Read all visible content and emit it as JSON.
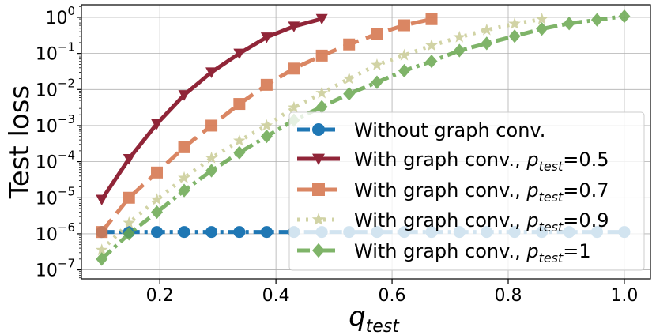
{
  "chart_data": {
    "type": "line",
    "xlabel": "q",
    "xlabel_sub": "test",
    "ylabel": "Test loss",
    "yscale": "log",
    "xlim": [
      0.065,
      1.045
    ],
    "ylim_exp": [
      -7.25,
      0.35
    ],
    "grid": true,
    "legend_position": "lower-right",
    "xticks": [
      {
        "value": 0.2,
        "label": "0.2"
      },
      {
        "value": 0.4,
        "label": "0.4"
      },
      {
        "value": 0.6,
        "label": "0.6"
      },
      {
        "value": 0.8,
        "label": "0.8"
      },
      {
        "value": 1.0,
        "label": "1.0"
      }
    ],
    "yticks": [
      {
        "exp": 0,
        "base": "10",
        "sup": "0"
      },
      {
        "exp": -1,
        "base": "10",
        "sup": "−1"
      },
      {
        "exp": -2,
        "base": "10",
        "sup": "−2"
      },
      {
        "exp": -3,
        "base": "10",
        "sup": "−3"
      },
      {
        "exp": -4,
        "base": "10",
        "sup": "−4"
      },
      {
        "exp": -5,
        "base": "10",
        "sup": "−5"
      },
      {
        "exp": -6,
        "base": "10",
        "sup": "−6"
      },
      {
        "exp": -7,
        "base": "10",
        "sup": "−7"
      }
    ],
    "series": [
      {
        "name": "Without graph conv.",
        "legend_main": "Without graph conv.",
        "legend_sub": "",
        "legend_suffix": "",
        "color": "#1f77b4",
        "marker": "circle",
        "dash": "16 6 4 6",
        "alpha": 1.0,
        "x": [
          0.1,
          0.147,
          0.195,
          0.242,
          0.289,
          0.337,
          0.384,
          0.431,
          0.479,
          0.526,
          0.574,
          0.621,
          0.668,
          0.716,
          0.763,
          0.811,
          0.858,
          0.905,
          0.953,
          1.0
        ],
        "log10_y": [
          -5.95,
          -5.95,
          -5.95,
          -5.95,
          -5.95,
          -5.95,
          -5.95,
          -5.95,
          -5.95,
          -5.95,
          -5.95,
          -5.95,
          -5.95,
          -5.95,
          -5.95,
          -5.95,
          -5.95,
          -5.95,
          -5.95,
          -5.95
        ]
      },
      {
        "name": "With graph conv., p_test=0.5",
        "legend_main": "With graph conv., ",
        "legend_p": "p",
        "legend_sub": "test",
        "legend_suffix": "=0.5",
        "color": "#8b1a2e",
        "marker": "triangle-down",
        "dash": "",
        "alpha": 0.95,
        "x": [
          0.1,
          0.147,
          0.195,
          0.242,
          0.289,
          0.337,
          0.384,
          0.431,
          0.479
        ],
        "log10_y": [
          -5.05,
          -3.92,
          -2.95,
          -2.15,
          -1.52,
          -1.0,
          -0.55,
          -0.25,
          -0.04
        ]
      },
      {
        "name": "With graph conv., p_test=0.7",
        "legend_main": "With graph conv., ",
        "legend_p": "p",
        "legend_sub": "test",
        "legend_suffix": "=0.7",
        "color": "#d67a53",
        "marker": "square",
        "dash": "20 10",
        "alpha": 0.9,
        "x": [
          0.1,
          0.147,
          0.195,
          0.242,
          0.289,
          0.337,
          0.384,
          0.431,
          0.479,
          0.526,
          0.574,
          0.621,
          0.668
        ],
        "log10_y": [
          -5.95,
          -5.0,
          -4.3,
          -3.6,
          -3.0,
          -2.4,
          -1.87,
          -1.42,
          -1.06,
          -0.75,
          -0.46,
          -0.22,
          -0.05
        ]
      },
      {
        "name": "With graph conv., p_test=0.9",
        "legend_main": "With graph conv., ",
        "legend_p": "p",
        "legend_sub": "test",
        "legend_suffix": "=0.9",
        "color": "#cdcf9c",
        "marker": "star",
        "dash": "3 8",
        "alpha": 0.9,
        "x": [
          0.1,
          0.147,
          0.195,
          0.242,
          0.289,
          0.337,
          0.384,
          0.431,
          0.479,
          0.526,
          0.574,
          0.621,
          0.668,
          0.716,
          0.763,
          0.811,
          0.858
        ],
        "log10_y": [
          -6.45,
          -5.7,
          -5.05,
          -4.45,
          -3.9,
          -3.42,
          -3.0,
          -2.5,
          -2.1,
          -1.7,
          -1.32,
          -1.05,
          -0.78,
          -0.55,
          -0.35,
          -0.18,
          -0.05
        ]
      },
      {
        "name": "With graph conv., p_test=1",
        "legend_main": "With graph conv., ",
        "legend_p": "p",
        "legend_sub": "test",
        "legend_suffix": "=1",
        "color": "#69a84f",
        "marker": "diamond",
        "dash": "16 6 4 6",
        "alpha": 0.85,
        "x": [
          0.1,
          0.147,
          0.195,
          0.242,
          0.289,
          0.337,
          0.384,
          0.431,
          0.479,
          0.526,
          0.574,
          0.621,
          0.668,
          0.716,
          0.763,
          0.811,
          0.858,
          0.905,
          0.953,
          1.0
        ],
        "log10_y": [
          -6.7,
          -6.0,
          -5.4,
          -4.8,
          -4.25,
          -3.75,
          -3.3,
          -2.85,
          -2.48,
          -2.12,
          -1.8,
          -1.48,
          -1.22,
          -0.92,
          -0.72,
          -0.52,
          -0.32,
          -0.17,
          -0.07,
          0.03
        ]
      }
    ]
  }
}
